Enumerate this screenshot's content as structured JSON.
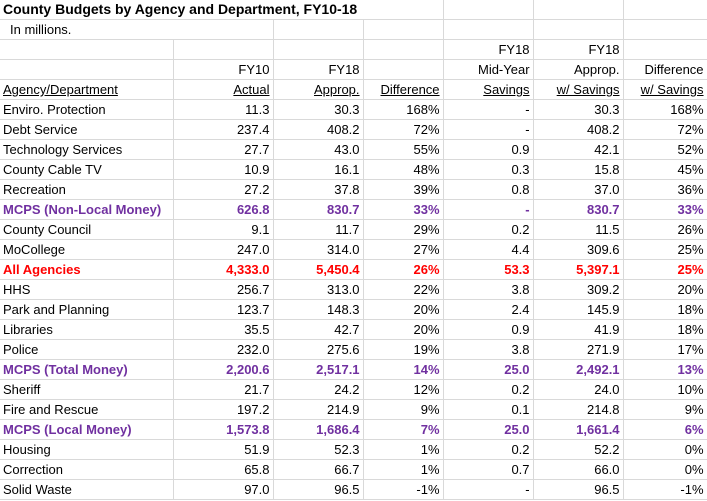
{
  "title": "County Budgets by Agency and Department, FY10-18",
  "subtitle": "In millions.",
  "headers": {
    "row1": [
      "",
      "",
      "",
      "",
      "FY18",
      "FY18",
      ""
    ],
    "row2": [
      "",
      "FY10",
      "FY18",
      "",
      "Mid-Year",
      "Approp.",
      "Difference"
    ],
    "row3": [
      "Agency/Department",
      "Actual",
      "Approp.",
      "Difference",
      "Savings",
      "w/ Savings",
      "w/ Savings"
    ]
  },
  "colors": {
    "purple": "#7030a0",
    "red": "#ff0000",
    "gridline": "#d9d9d9"
  },
  "rows": [
    {
      "style": "normal",
      "cells": [
        "Enviro. Protection",
        "11.3",
        "30.3",
        "168%",
        "-",
        "30.3",
        "168%"
      ]
    },
    {
      "style": "normal",
      "cells": [
        "Debt Service",
        "237.4",
        "408.2",
        "72%",
        "-",
        "408.2",
        "72%"
      ]
    },
    {
      "style": "normal",
      "cells": [
        "Technology Services",
        "27.7",
        "43.0",
        "55%",
        "0.9",
        "42.1",
        "52%"
      ]
    },
    {
      "style": "normal",
      "cells": [
        "County Cable TV",
        "10.9",
        "16.1",
        "48%",
        "0.3",
        "15.8",
        "45%"
      ]
    },
    {
      "style": "normal",
      "cells": [
        "Recreation",
        "27.2",
        "37.8",
        "39%",
        "0.8",
        "37.0",
        "36%"
      ]
    },
    {
      "style": "purple",
      "cells": [
        "MCPS (Non-Local Money)",
        "626.8",
        "830.7",
        "33%",
        "-",
        "830.7",
        "33%"
      ]
    },
    {
      "style": "normal",
      "cells": [
        "County Council",
        "9.1",
        "11.7",
        "29%",
        "0.2",
        "11.5",
        "26%"
      ]
    },
    {
      "style": "normal",
      "cells": [
        "MoCollege",
        "247.0",
        "314.0",
        "27%",
        "4.4",
        "309.6",
        "25%"
      ]
    },
    {
      "style": "red",
      "cells": [
        "All Agencies",
        "4,333.0",
        "5,450.4",
        "26%",
        "53.3",
        "5,397.1",
        "25%"
      ]
    },
    {
      "style": "normal",
      "cells": [
        "HHS",
        "256.7",
        "313.0",
        "22%",
        "3.8",
        "309.2",
        "20%"
      ]
    },
    {
      "style": "normal",
      "cells": [
        "Park and Planning",
        "123.7",
        "148.3",
        "20%",
        "2.4",
        "145.9",
        "18%"
      ]
    },
    {
      "style": "normal",
      "cells": [
        "Libraries",
        "35.5",
        "42.7",
        "20%",
        "0.9",
        "41.9",
        "18%"
      ]
    },
    {
      "style": "normal",
      "cells": [
        "Police",
        "232.0",
        "275.6",
        "19%",
        "3.8",
        "271.9",
        "17%"
      ]
    },
    {
      "style": "purple",
      "cells": [
        "MCPS (Total Money)",
        "2,200.6",
        "2,517.1",
        "14%",
        "25.0",
        "2,492.1",
        "13%"
      ]
    },
    {
      "style": "normal",
      "cells": [
        "Sheriff",
        "21.7",
        "24.2",
        "12%",
        "0.2",
        "24.0",
        "10%"
      ]
    },
    {
      "style": "normal",
      "cells": [
        "Fire and Rescue",
        "197.2",
        "214.9",
        "9%",
        "0.1",
        "214.8",
        "9%"
      ]
    },
    {
      "style": "purple",
      "cells": [
        "MCPS (Local Money)",
        "1,573.8",
        "1,686.4",
        "7%",
        "25.0",
        "1,661.4",
        "6%"
      ]
    },
    {
      "style": "normal",
      "cells": [
        "Housing",
        "51.9",
        "52.3",
        "1%",
        "0.2",
        "52.2",
        "0%"
      ]
    },
    {
      "style": "normal",
      "cells": [
        "Correction",
        "65.8",
        "66.7",
        "1%",
        "0.7",
        "66.0",
        "0%"
      ]
    },
    {
      "style": "normal",
      "cells": [
        "Solid Waste",
        "97.0",
        "96.5",
        "-1%",
        "-",
        "96.5",
        "-1%"
      ]
    }
  ]
}
